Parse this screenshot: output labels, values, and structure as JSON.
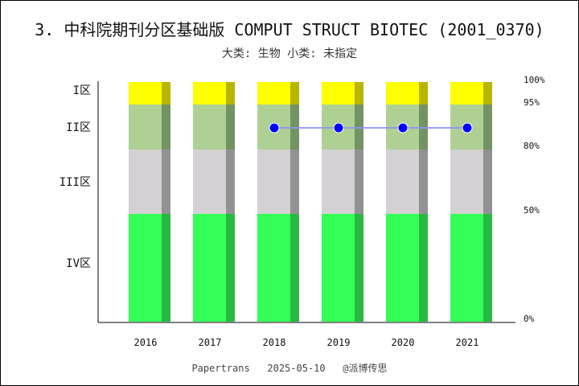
{
  "chart_data": {
    "type": "bar",
    "title": "3. 中科院期刊分区基础版 COMPUT STRUCT BIOTEC (2001_0370)",
    "subtitle": "大类: 生物 小类: 未指定",
    "categories": [
      "2016",
      "2017",
      "2018",
      "2019",
      "2020",
      "2021"
    ],
    "zones": [
      {
        "label": "IV区",
        "from": 0,
        "to": 50,
        "color": "#33ff57",
        "shade": "#28b943"
      },
      {
        "label": "III区",
        "from": 50,
        "to": 80,
        "color": "#d3d1d3",
        "shade": "#939193"
      },
      {
        "label": "II区",
        "from": 80,
        "to": 95,
        "color": "#aed193",
        "shade": "#749263"
      },
      {
        "label": "I区",
        "from": 95,
        "to": 100,
        "color": "#ffff00",
        "shade": "#b8b600"
      }
    ],
    "right_ticks": [
      "0%",
      "50%",
      "80%",
      "95%",
      "100%"
    ],
    "series": [
      {
        "values": [
          null,
          null,
          "II区",
          "II区",
          "II区",
          "II区"
        ],
        "color": "#0000ff",
        "line_color": "#8f95f5"
      }
    ],
    "footer": "Papertrans   2025-05-10   @派博传思"
  }
}
